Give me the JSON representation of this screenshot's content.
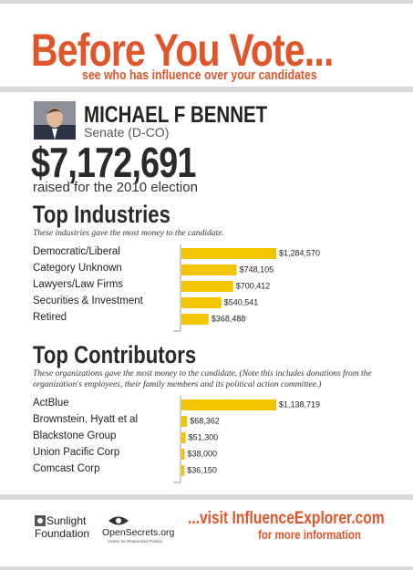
{
  "header": {
    "title": "Before You Vote...",
    "subtitle": "see who has influence over your candidates"
  },
  "candidate": {
    "name": "MICHAEL F BENNET",
    "office": "Senate (D-CO)",
    "total": "$7,172,691",
    "total_note": "raised for the 2010 election"
  },
  "chart_data": [
    {
      "type": "bar",
      "orientation": "horizontal",
      "title": "Top Industries",
      "subtitle": "These industries gave the most money to the candidate.",
      "categories": [
        "Democratic/Liberal",
        "Category Unknown",
        "Lawyers/Law Firms",
        "Securities & Investment",
        "Retired"
      ],
      "values": [
        1284570,
        748105,
        700412,
        540541,
        368488
      ],
      "value_labels": [
        "$1,284,570",
        "$748,105",
        "$700,412",
        "$540,541",
        "$368,488"
      ],
      "color": "#f2c500"
    },
    {
      "type": "bar",
      "orientation": "horizontal",
      "title": "Top Contributors",
      "subtitle": "These organizations gave the most money to the candidate. (Note this includes donations from the organization's employees, their family members and its political action committee.)",
      "categories": [
        "ActBlue",
        "Brownstein, Hyatt et al",
        "Blackstone Group",
        "Union Pacific Corp",
        "Comcast Corp"
      ],
      "values": [
        1138719,
        68362,
        51300,
        38000,
        36150
      ],
      "value_labels": [
        "$1,138,719",
        "$68,362",
        "$51,300",
        "$38,000",
        "$36,150"
      ],
      "color": "#f2c500"
    }
  ],
  "footer": {
    "sunlight_1": "Sunlight",
    "sunlight_2": "Foundation",
    "opensecrets": "OpenSecrets.org",
    "opensecrets_tag": "Center for Responsive Politics",
    "visit": "...visit InfluenceExplorer.com",
    "more": "for more information"
  }
}
